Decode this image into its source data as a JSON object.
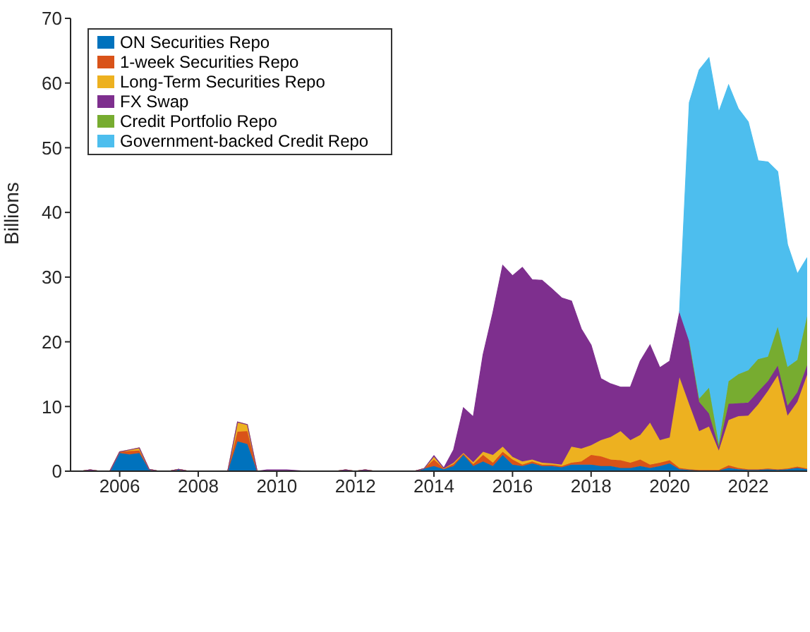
{
  "chart_data": {
    "type": "area",
    "stacked": true,
    "ylabel": "Billions",
    "legend": "top left",
    "x": [
      2005,
      2005.25,
      2005.5,
      2005.75,
      2006,
      2006.25,
      2006.5,
      2006.75,
      2007,
      2007.25,
      2007.5,
      2007.75,
      2008,
      2008.25,
      2008.5,
      2008.75,
      2009,
      2009.25,
      2009.5,
      2009.75,
      2010,
      2010.25,
      2010.5,
      2010.75,
      2011,
      2011.25,
      2011.5,
      2011.75,
      2012,
      2012.25,
      2012.5,
      2012.75,
      2013,
      2013.25,
      2013.5,
      2013.75,
      2014,
      2014.25,
      2014.5,
      2014.75,
      2015,
      2015.25,
      2015.5,
      2015.75,
      2016,
      2016.25,
      2016.5,
      2016.75,
      2017,
      2017.25,
      2017.5,
      2017.75,
      2018,
      2018.25,
      2018.5,
      2018.75,
      2019,
      2019.25,
      2019.5,
      2019.75,
      2020,
      2020.25,
      2020.5,
      2020.75,
      2021,
      2021.25,
      2021.5,
      2021.75,
      2022,
      2022.25,
      2022.5,
      2022.75,
      2023,
      2023.25,
      2023.5
    ],
    "series": [
      {
        "name": "ON Securities Repo",
        "color": "#0072bd",
        "values": [
          0,
          0.2,
          0,
          0,
          2.8,
          2.6,
          2.8,
          0.3,
          0,
          0,
          0.3,
          0,
          0,
          0,
          0,
          0,
          4.6,
          4.2,
          0,
          0,
          0,
          0,
          0,
          0,
          0,
          0,
          0,
          0.2,
          0,
          0.2,
          0,
          0,
          0,
          0,
          0,
          0.4,
          0.8,
          0.3,
          0.8,
          2.5,
          0.8,
          1.5,
          0.8,
          2.5,
          1,
          0.8,
          1.2,
          0.8,
          0.8,
          0.6,
          1,
          1,
          1,
          0.8,
          0.8,
          0.5,
          0.5,
          0.8,
          0.5,
          0.8,
          1.2,
          0.3,
          0.2,
          0.1,
          0.1,
          0.1,
          0.5,
          0.3,
          0.2,
          0.2,
          0.3,
          0.2,
          0.3,
          0.5,
          0.3
        ]
      },
      {
        "name": "1-week Securities Repo",
        "color": "#d95319",
        "values": [
          0,
          0,
          0,
          0,
          0.2,
          0.5,
          0.4,
          0,
          0,
          0,
          0,
          0,
          0,
          0,
          0,
          0,
          1.5,
          2,
          0,
          0,
          0,
          0,
          0,
          0,
          0,
          0,
          0,
          0,
          0,
          0,
          0,
          0,
          0,
          0,
          0,
          0,
          1,
          0.1,
          0.3,
          0.2,
          0.3,
          1,
          0.5,
          0.5,
          0.8,
          0.2,
          0.3,
          0.2,
          0.2,
          0.2,
          0.3,
          0.5,
          1.5,
          1.5,
          1,
          1.2,
          0.8,
          1,
          0.5,
          0.5,
          0.5,
          0.2,
          0.1,
          0.1,
          0.1,
          0.1,
          0.4,
          0.2,
          0.1,
          0.1,
          0.1,
          0.1,
          0.1,
          0.2,
          0.1
        ]
      },
      {
        "name": "Long-Term Securities Repo",
        "color": "#edb120",
        "values": [
          0,
          0,
          0,
          0,
          0,
          0.2,
          0.4,
          0,
          0,
          0,
          0,
          0,
          0,
          0,
          0,
          0,
          1.5,
          1,
          0,
          0,
          0,
          0,
          0,
          0,
          0,
          0,
          0,
          0,
          0,
          0,
          0,
          0,
          0,
          0,
          0,
          0,
          0.4,
          0,
          0.2,
          0.1,
          0.3,
          0.5,
          1.2,
          0.8,
          0.4,
          0.5,
          0.3,
          0.3,
          0.2,
          0.2,
          2.5,
          2,
          1.5,
          2.5,
          3.5,
          4.5,
          3.5,
          3.8,
          6.5,
          3.5,
          3.5,
          14,
          10,
          6,
          6.7,
          3,
          7,
          8,
          8.3,
          10,
          12,
          14.5,
          8.2,
          10,
          14.5
        ]
      },
      {
        "name": "FX Swap",
        "color": "#7e2f8e",
        "values": [
          0,
          0,
          0,
          0,
          0,
          0,
          0,
          0,
          0,
          0,
          0,
          0,
          0,
          0,
          0,
          0,
          0,
          0,
          0,
          0.2,
          0.2,
          0.2,
          0.1,
          0,
          0,
          0,
          0,
          0,
          0,
          0,
          0,
          0,
          0,
          0,
          0,
          0,
          0.2,
          0.1,
          2,
          7,
          7,
          15,
          22,
          28,
          28,
          30,
          27.8,
          28.2,
          27,
          25.8,
          22.5,
          18.5,
          15.5,
          9.5,
          8.2,
          6.8,
          8.2,
          11.4,
          12,
          11.2,
          11.8,
          10,
          9.7,
          4.5,
          2,
          0.5,
          2.5,
          2,
          2,
          2,
          1.5,
          1.5,
          1.5,
          1.5,
          1.5
        ]
      },
      {
        "name": "Credit Portfolio Repo",
        "color": "#77ac30",
        "values": [
          null,
          null,
          null,
          null,
          null,
          null,
          null,
          null,
          null,
          null,
          null,
          null,
          null,
          null,
          null,
          null,
          null,
          null,
          null,
          null,
          null,
          null,
          null,
          null,
          null,
          null,
          null,
          null,
          null,
          null,
          null,
          null,
          null,
          null,
          null,
          null,
          null,
          null,
          null,
          null,
          null,
          null,
          null,
          null,
          null,
          null,
          null,
          null,
          null,
          null,
          null,
          null,
          null,
          null,
          null,
          null,
          null,
          null,
          null,
          null,
          null,
          null,
          0,
          0.5,
          4,
          0.5,
          3.5,
          4.5,
          5,
          5,
          3.8,
          6,
          6,
          5,
          7.6
        ]
      },
      {
        "name": "Government-backed Credit Repo",
        "color": "#4dbeee",
        "values": [
          null,
          null,
          null,
          null,
          null,
          null,
          null,
          null,
          null,
          null,
          null,
          null,
          null,
          null,
          null,
          null,
          null,
          null,
          null,
          null,
          null,
          null,
          null,
          null,
          null,
          null,
          null,
          null,
          null,
          null,
          null,
          null,
          null,
          null,
          null,
          null,
          null,
          null,
          null,
          null,
          null,
          null,
          null,
          null,
          null,
          null,
          null,
          null,
          null,
          null,
          null,
          null,
          null,
          null,
          null,
          null,
          null,
          null,
          null,
          null,
          null,
          0,
          37,
          50.8,
          51,
          51.3,
          45.8,
          41,
          38.4,
          30.7,
          30.1,
          24,
          18.9,
          13.3,
          9
        ]
      }
    ],
    "xlim": [
      2004.75,
      2023.5
    ],
    "xticks": [
      2006,
      2008,
      2010,
      2012,
      2014,
      2016,
      2018,
      2020,
      2022
    ],
    "ylim": [
      0,
      70
    ],
    "yticks": [
      0,
      10,
      20,
      30,
      40,
      50,
      60,
      70
    ]
  }
}
